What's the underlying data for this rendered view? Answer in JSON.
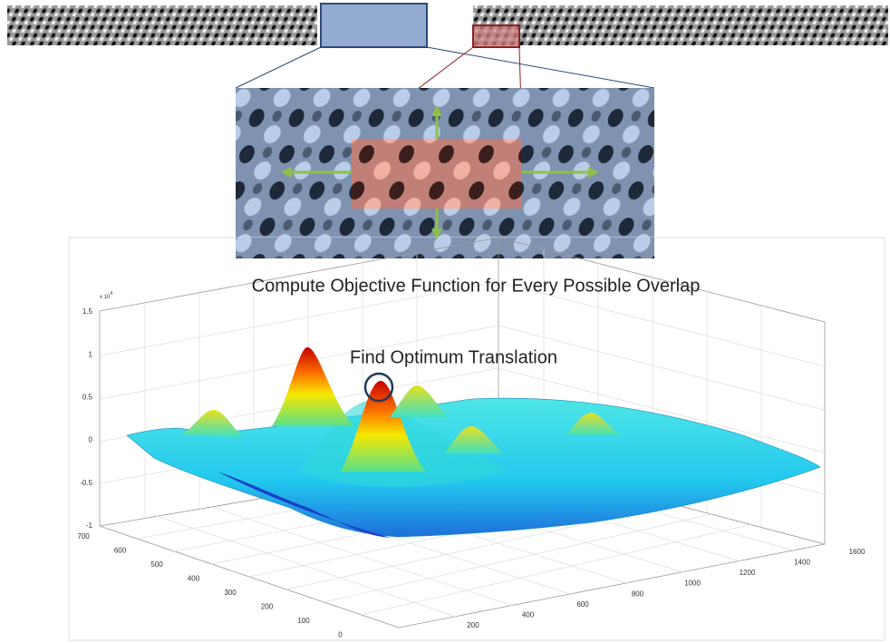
{
  "plot": {
    "title": "Compute Objective Function for Every Possible Overlap",
    "annotation": "Find Optimum Translation",
    "z_multiplier": "x 10",
    "z_exponent": "4",
    "z_ticks": [
      "1.5",
      "1",
      "0.5",
      "0",
      "-0.5",
      "-1"
    ],
    "y_ticks": [
      "700",
      "600",
      "500",
      "400",
      "300",
      "200",
      "100",
      "0"
    ],
    "x_ticks": [
      "200",
      "400",
      "600",
      "800",
      "1000",
      "1200",
      "1400",
      "1600"
    ]
  }
}
